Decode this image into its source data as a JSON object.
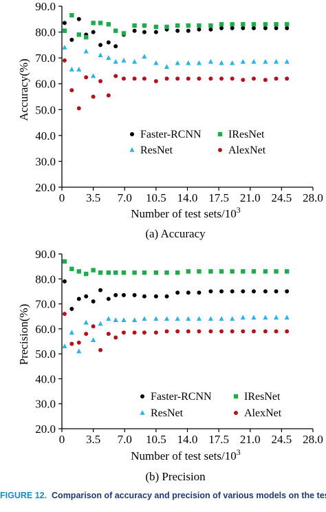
{
  "figure_caption": {
    "label": "FIGURE 12.",
    "text": "Comparison of accuracy and precision of various models on the test set"
  },
  "colors": {
    "Faster-RCNN": "#000000",
    "IResNet": "#1faa4b",
    "ResNet": "#2bb3e6",
    "AlexNet": "#b5121b"
  },
  "marker_shapes": {
    "Faster-RCNN": "circle",
    "IResNet": "square",
    "ResNet": "triangle",
    "AlexNet": "circle"
  },
  "chart_data": [
    {
      "type": "scatter",
      "subcaption": "(a) Accuracy",
      "xlabel": "Number of test sets/10",
      "xlabel_exponent": "3",
      "ylabel": "Accuracy(%)",
      "xlim": [
        0,
        28.0
      ],
      "ylim": [
        20.0,
        90.0
      ],
      "xticks": [
        "0",
        "3.5",
        "7.0",
        "10.5",
        "14.0",
        "17.5",
        "21.0",
        "24.5",
        "28.0"
      ],
      "yticks": [
        "20.0",
        "30.0",
        "40.0",
        "50.0",
        "60.0",
        "70.0",
        "80.0",
        "90.0"
      ],
      "grid": false,
      "legend_position": "center-right",
      "legend": [
        "Faster-RCNN",
        "IResNet",
        "ResNet",
        "AlexNet"
      ],
      "series": [
        {
          "name": "Faster-RCNN",
          "x": [
            0.3,
            1.1,
            1.9,
            2.7,
            3.5,
            4.3,
            5.2,
            6.0,
            6.9,
            8.1,
            9.2,
            10.5,
            11.7,
            12.9,
            14.1,
            15.3,
            16.6,
            17.8,
            19.0,
            20.2,
            21.4,
            22.7,
            23.9,
            25.1
          ],
          "y": [
            83.5,
            77.0,
            85.0,
            79.0,
            80.0,
            75.0,
            76.0,
            74.5,
            79.0,
            80.5,
            80.0,
            80.0,
            81.0,
            80.5,
            80.5,
            81.0,
            81.0,
            81.5,
            81.5,
            81.5,
            81.5,
            81.5,
            81.5,
            81.5
          ]
        },
        {
          "name": "IResNet",
          "x": [
            0.3,
            1.1,
            1.9,
            2.7,
            3.5,
            4.3,
            5.2,
            6.0,
            6.9,
            8.1,
            9.2,
            10.5,
            11.7,
            12.9,
            14.1,
            15.3,
            16.6,
            17.8,
            19.0,
            20.2,
            21.4,
            22.7,
            23.9,
            25.1
          ],
          "y": [
            80.5,
            86.5,
            79.0,
            78.0,
            83.5,
            83.5,
            83.0,
            80.5,
            79.5,
            82.5,
            82.5,
            82.0,
            82.0,
            82.5,
            82.5,
            82.5,
            82.5,
            83.0,
            83.0,
            83.0,
            83.0,
            83.0,
            83.0,
            83.0
          ]
        },
        {
          "name": "ResNet",
          "x": [
            0.3,
            1.1,
            1.9,
            2.7,
            3.5,
            4.3,
            5.2,
            6.0,
            6.9,
            8.1,
            9.2,
            10.5,
            11.7,
            12.9,
            14.1,
            15.3,
            16.6,
            17.8,
            19.0,
            20.2,
            21.4,
            22.7,
            23.9,
            25.1
          ],
          "y": [
            74.0,
            65.5,
            65.5,
            72.5,
            63.0,
            71.0,
            70.0,
            68.5,
            69.0,
            68.5,
            70.5,
            68.0,
            66.5,
            68.0,
            68.0,
            68.0,
            68.5,
            68.0,
            68.0,
            68.5,
            68.5,
            68.5,
            68.5,
            68.5
          ]
        },
        {
          "name": "AlexNet",
          "x": [
            0.3,
            1.1,
            1.9,
            2.7,
            3.5,
            4.3,
            5.2,
            6.0,
            6.9,
            8.1,
            9.2,
            10.5,
            11.7,
            12.9,
            14.1,
            15.3,
            16.6,
            17.8,
            19.0,
            20.2,
            21.4,
            22.7,
            23.9,
            25.1
          ],
          "y": [
            69.0,
            57.5,
            50.5,
            62.5,
            55.0,
            61.0,
            55.5,
            63.0,
            62.0,
            62.0,
            62.0,
            61.0,
            62.0,
            62.0,
            62.0,
            62.0,
            62.0,
            62.0,
            62.0,
            61.5,
            62.0,
            61.5,
            62.0,
            62.0
          ]
        }
      ]
    },
    {
      "type": "scatter",
      "subcaption": "(b) Precision",
      "xlabel": "Number of test sets/10",
      "xlabel_exponent": "3",
      "ylabel": "Precision(%)",
      "xlim": [
        0,
        28.0
      ],
      "ylim": [
        20.0,
        90.0
      ],
      "xticks": [
        "0",
        "3.5",
        "7.0",
        "10.5",
        "14.0",
        "17.5",
        "21.0",
        "24.5",
        "28.0"
      ],
      "yticks": [
        "20.0",
        "30.0",
        "40.0",
        "50.0",
        "60.0",
        "70.0",
        "80.0",
        "90.0"
      ],
      "grid": false,
      "legend_position": "bottom-right",
      "legend": [
        "Faster-RCNN",
        "IResNet",
        "ResNet",
        "AlexNet"
      ],
      "series": [
        {
          "name": "Faster-RCNN",
          "x": [
            0.3,
            1.1,
            1.9,
            2.7,
            3.5,
            4.3,
            5.2,
            6.0,
            6.9,
            8.1,
            9.2,
            10.5,
            11.7,
            12.9,
            14.1,
            15.3,
            16.6,
            17.8,
            19.0,
            20.2,
            21.4,
            22.7,
            23.9,
            25.1
          ],
          "y": [
            79.0,
            68.0,
            72.0,
            73.0,
            71.0,
            75.5,
            72.0,
            73.5,
            73.5,
            73.5,
            73.0,
            73.0,
            73.0,
            74.5,
            74.5,
            74.5,
            75.0,
            75.0,
            75.0,
            75.0,
            75.0,
            75.0,
            75.0,
            75.0
          ]
        },
        {
          "name": "IResNet",
          "x": [
            0.3,
            1.1,
            1.9,
            2.7,
            3.5,
            4.3,
            5.2,
            6.0,
            6.9,
            8.1,
            9.2,
            10.5,
            11.7,
            12.9,
            14.1,
            15.3,
            16.6,
            17.8,
            19.0,
            20.2,
            21.4,
            22.7,
            23.9,
            25.1
          ],
          "y": [
            87.0,
            84.0,
            83.0,
            82.0,
            83.5,
            82.5,
            82.5,
            82.5,
            82.5,
            82.5,
            82.5,
            82.5,
            82.5,
            82.5,
            83.0,
            83.0,
            83.0,
            83.0,
            83.0,
            83.0,
            83.0,
            83.0,
            83.0,
            83.0
          ]
        },
        {
          "name": "ResNet",
          "x": [
            0.3,
            1.1,
            1.9,
            2.7,
            3.5,
            4.3,
            5.2,
            6.0,
            6.9,
            8.1,
            9.2,
            10.5,
            11.7,
            12.9,
            14.1,
            15.3,
            16.6,
            17.8,
            19.0,
            20.2,
            21.4,
            22.7,
            23.9,
            25.1
          ],
          "y": [
            53.0,
            58.5,
            51.0,
            62.5,
            55.5,
            62.0,
            64.0,
            63.5,
            63.5,
            63.5,
            64.0,
            64.0,
            64.0,
            64.0,
            64.0,
            64.0,
            64.0,
            64.0,
            64.0,
            64.5,
            64.5,
            64.5,
            64.5,
            64.5
          ]
        },
        {
          "name": "AlexNet",
          "x": [
            0.3,
            1.1,
            1.9,
            2.7,
            3.5,
            4.3,
            5.2,
            6.0,
            6.9,
            8.1,
            9.2,
            10.5,
            11.7,
            12.9,
            14.1,
            15.3,
            16.6,
            17.8,
            19.0,
            20.2,
            21.4,
            22.7,
            23.9,
            25.1
          ],
          "y": [
            66.0,
            54.0,
            54.5,
            58.0,
            61.0,
            51.5,
            58.0,
            56.5,
            58.5,
            58.5,
            58.5,
            58.5,
            59.0,
            59.0,
            59.0,
            59.0,
            59.0,
            59.0,
            59.0,
            59.0,
            59.0,
            59.0,
            59.0,
            59.0
          ]
        }
      ]
    }
  ]
}
